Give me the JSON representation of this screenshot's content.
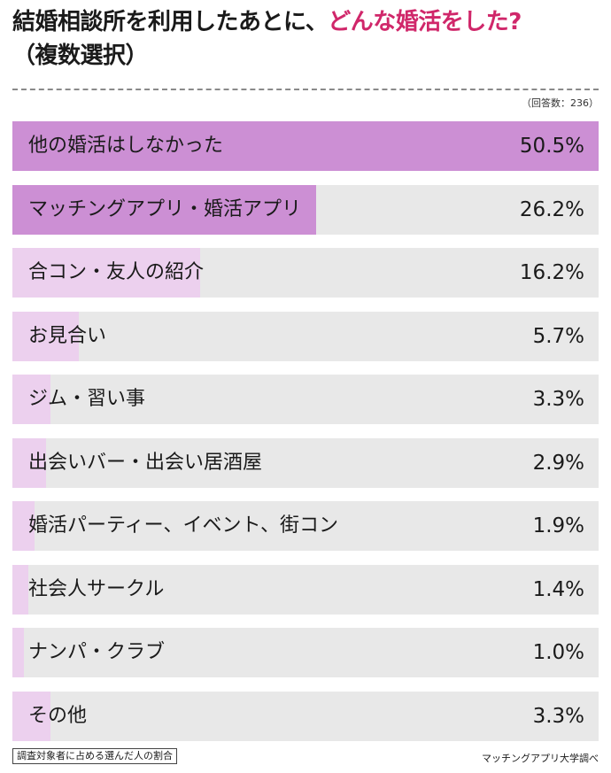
{
  "header": {
    "title_lead": "結婚相談所を利用したあとに、",
    "title_highlight": "どんな婚活をした?",
    "title_sub": "（複数選択）",
    "respondents": "（回答数：236）"
  },
  "footer": {
    "note": "調査対象者に占める選んだ人の割合",
    "source": "マッチングアプリ大学調べ"
  },
  "colors": {
    "bar_strong": "#cc8fd4",
    "bar_light": "#ecd0ee",
    "track": "#e8e8e8",
    "highlight": "#d0276a"
  },
  "chart_data": {
    "type": "bar",
    "orientation": "horizontal",
    "xlim": [
      0,
      50.5
    ],
    "categories": [
      "他の婚活はしなかった",
      "マッチングアプリ・婚活アプリ",
      "合コン・友人の紹介",
      "お見合い",
      "ジム・習い事",
      "出会いバー・出会い居酒屋",
      "婚活パーティー、イベント、街コン",
      "社会人サークル",
      "ナンパ・クラブ",
      "その他"
    ],
    "values": [
      50.5,
      26.2,
      16.2,
      5.7,
      3.3,
      2.9,
      1.9,
      1.4,
      1.0,
      3.3
    ],
    "labels": [
      "50.5%",
      "26.2%",
      "16.2%",
      "5.7%",
      "3.3%",
      "2.9%",
      "1.9%",
      "1.4%",
      "1.0%",
      "3.3%"
    ]
  }
}
